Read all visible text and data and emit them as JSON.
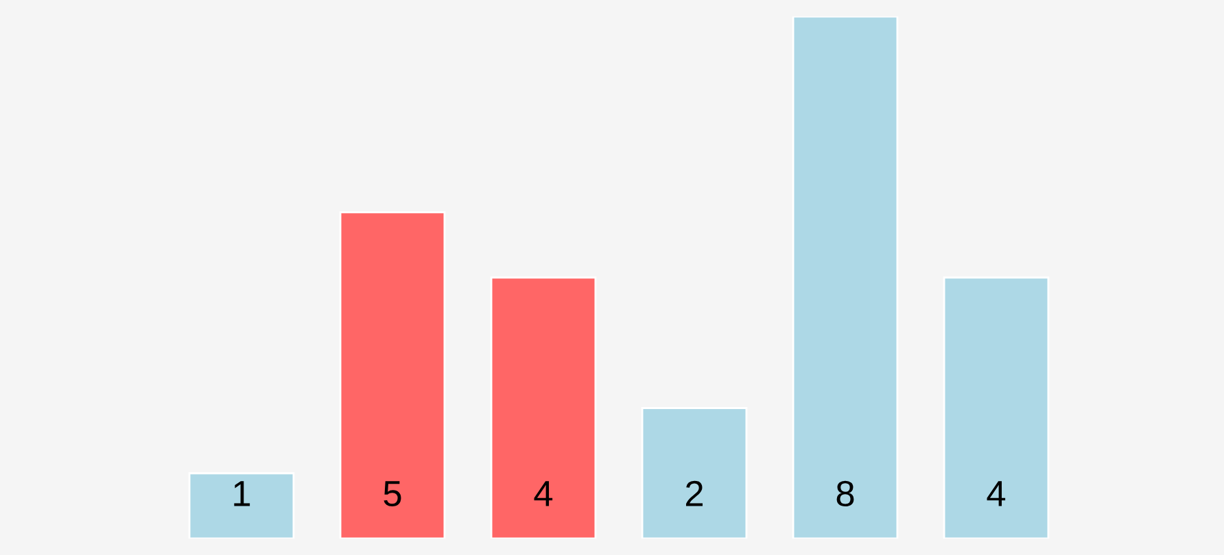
{
  "chart_data": {
    "type": "bar",
    "categories": [
      null,
      null,
      null,
      null,
      null,
      null
    ],
    "values": [
      1,
      5,
      4,
      2,
      8,
      4
    ],
    "colors": [
      "#add8e6",
      "#ff6666",
      "#ff6666",
      "#add8e6",
      "#add8e6",
      "#add8e6"
    ],
    "data_labels": true
  }
}
